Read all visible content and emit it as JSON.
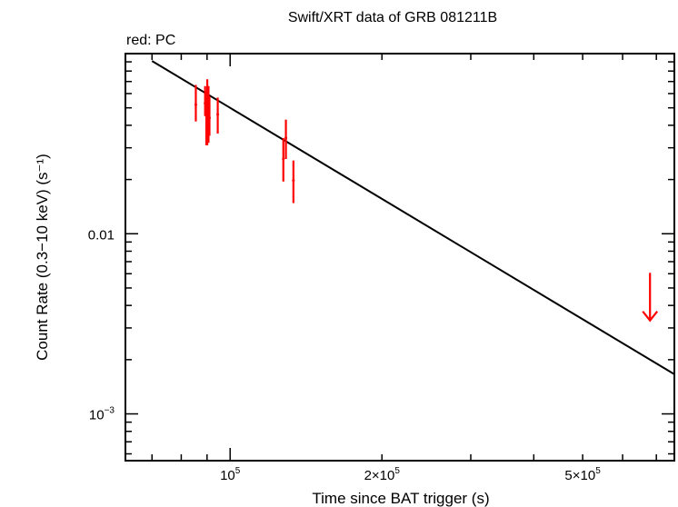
{
  "chart_data": {
    "type": "scatter",
    "title": "Swift/XRT data of GRB 081211B",
    "subtitle": "red: PC",
    "xlabel": "Time since BAT trigger (s)",
    "ylabel": "Count Rate (0.3−10 keV) (s⁻¹)",
    "xscale": "log",
    "yscale": "log",
    "xlim": [
      62000,
      760000
    ],
    "ylim": [
      0.00055,
      0.1
    ],
    "xticks": [
      {
        "value": 100000,
        "mantissa": "",
        "base": "10",
        "exp": "5"
      },
      {
        "value": 200000,
        "mantissa": "2×",
        "base": "10",
        "exp": "5"
      },
      {
        "value": 500000,
        "mantissa": "5×",
        "base": "10",
        "exp": "5"
      }
    ],
    "yticks": [
      {
        "value": 0.01,
        "label": "0.01"
      },
      {
        "value": 0.001,
        "label": "10",
        "exp": "−3"
      }
    ],
    "series": [
      {
        "color": "#ff0000",
        "points": [
          {
            "x": 85500,
            "y": 0.052,
            "ylo": 0.042,
            "yhi": 0.067
          },
          {
            "x": 89200,
            "y": 0.053,
            "ylo": 0.045,
            "yhi": 0.066
          },
          {
            "x": 89700,
            "y": 0.046,
            "ylo": 0.031,
            "yhi": 0.062
          },
          {
            "x": 90100,
            "y": 0.042,
            "ylo": 0.031,
            "yhi": 0.072
          },
          {
            "x": 90600,
            "y": 0.05,
            "ylo": 0.032,
            "yhi": 0.066
          },
          {
            "x": 91000,
            "y": 0.044,
            "ylo": 0.035,
            "yhi": 0.058
          },
          {
            "x": 94500,
            "y": 0.046,
            "ylo": 0.036,
            "yhi": 0.057
          },
          {
            "x": 127500,
            "y": 0.026,
            "ylo": 0.0195,
            "yhi": 0.034
          },
          {
            "x": 129000,
            "y": 0.034,
            "ylo": 0.026,
            "yhi": 0.043
          },
          {
            "x": 133500,
            "y": 0.0198,
            "ylo": 0.0148,
            "yhi": 0.0255
          }
        ],
        "upper_limits": [
          {
            "x": 680000,
            "y": 0.0047,
            "to": 0.0033
          }
        ]
      }
    ],
    "model": {
      "type": "power-law",
      "color": "#000000",
      "points": [
        [
          70000,
          0.091
        ],
        [
          760000,
          0.00166
        ]
      ]
    }
  }
}
